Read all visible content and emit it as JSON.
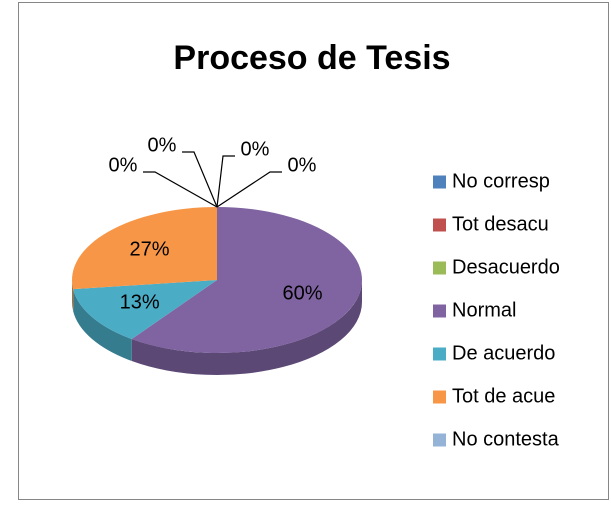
{
  "chart_data": {
    "type": "pie",
    "title": "Proceso de Tesis",
    "categories": [
      "No corresp",
      "Tot desacu",
      "Desacuerdo",
      "Normal",
      "De acuerdo",
      "Tot de acue",
      "No contesta"
    ],
    "values": [
      0,
      0,
      0,
      60,
      13,
      27,
      0
    ],
    "value_labels": [
      "0%",
      "0%",
      "0%",
      "60%",
      "13%",
      "27%",
      "0%"
    ],
    "colors": [
      "#4f81bd",
      "#c0504d",
      "#9bbb59",
      "#8064a2",
      "#4bacc6",
      "#f79646",
      "#95b3d7"
    ],
    "legend": "right"
  }
}
